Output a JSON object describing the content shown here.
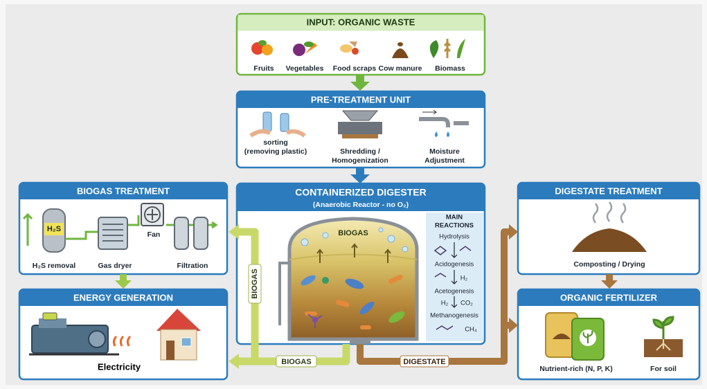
{
  "input": {
    "title": "INPUT: ORGANIC WASTE",
    "items": [
      "Fruits",
      "Vegetables",
      "Food scraps",
      "Cow manure",
      "Biomass"
    ]
  },
  "pretreatment": {
    "title": "PRE-TREATMENT UNIT",
    "steps": [
      [
        "sorting",
        "(removing plastic)"
      ],
      [
        "Shredding /",
        "Homogenization"
      ],
      [
        "Moisture",
        "Adjustment"
      ]
    ]
  },
  "biogas_treatment": {
    "title": "BIOGAS TREATMENT",
    "tank_label": "H₂S",
    "labels": [
      "H₂S removal",
      "Gas dryer",
      "Fan",
      "Filtration"
    ]
  },
  "energy_generation": {
    "title": "ENERGY GENERATION",
    "label": "Electricity"
  },
  "digester": {
    "title": "CONTAINERIZED DIGESTER",
    "subtitle": "(Anaerobic Reactor - no O₂)",
    "tank_label": "BIOGAS",
    "reactions": {
      "title": [
        "MAIN",
        "REACTIONS"
      ],
      "steps": [
        "Hydrolysis",
        "Acidogenesis",
        "Acetogenesis",
        "Methanogenesis"
      ],
      "products": [
        "H₂",
        "H₂",
        "CO₂",
        "CH₄"
      ]
    }
  },
  "digestate_treatment": {
    "title": "DIGESTATE TREATMENT",
    "label": "Composting / Drying"
  },
  "organic_fertilizer": {
    "title": "ORGANIC FERTILIZER",
    "labels": [
      "Nutrient-rich (N, P, K)",
      "For soil"
    ]
  },
  "flows": {
    "biogas_up": "BIOGAS",
    "biogas_down": "BIOGAS",
    "digestate": "DIGESTATE"
  }
}
